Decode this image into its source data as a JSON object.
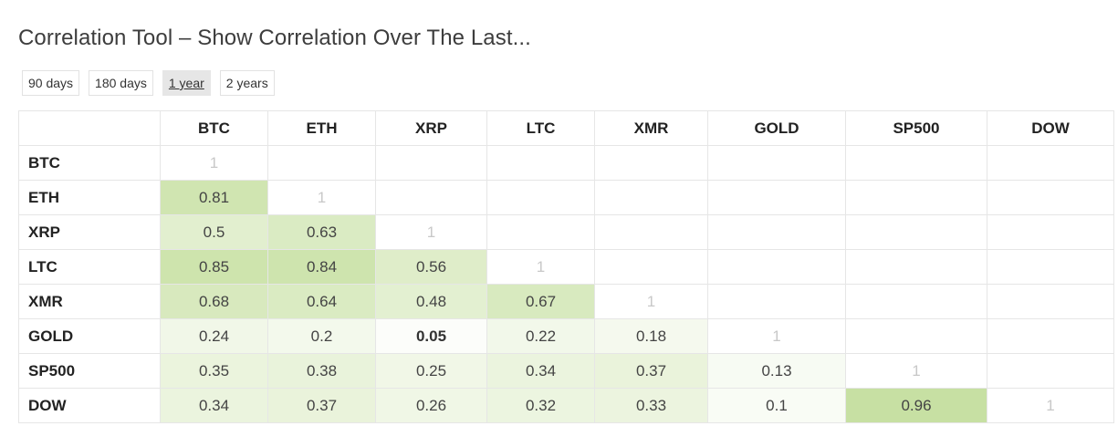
{
  "title": "Correlation Tool – Show Correlation Over The Last...",
  "ranges": [
    {
      "label": "90 days",
      "active": false
    },
    {
      "label": "180 days",
      "active": false
    },
    {
      "label": "1 year",
      "active": true
    },
    {
      "label": "2 years",
      "active": false
    }
  ],
  "matrix": {
    "columns": [
      "BTC",
      "ETH",
      "XRP",
      "LTC",
      "XMR",
      "GOLD",
      "SP500",
      "DOW"
    ],
    "rows": [
      {
        "label": "BTC",
        "values": [
          "1",
          "",
          "",
          "",
          "",
          "",
          "",
          ""
        ]
      },
      {
        "label": "ETH",
        "values": [
          "0.81",
          "1",
          "",
          "",
          "",
          "",
          "",
          ""
        ]
      },
      {
        "label": "XRP",
        "values": [
          "0.5",
          "0.63",
          "1",
          "",
          "",
          "",
          "",
          ""
        ]
      },
      {
        "label": "LTC",
        "values": [
          "0.85",
          "0.84",
          "0.56",
          "1",
          "",
          "",
          "",
          ""
        ]
      },
      {
        "label": "XMR",
        "values": [
          "0.68",
          "0.64",
          "0.48",
          "0.67",
          "1",
          "",
          "",
          ""
        ]
      },
      {
        "label": "GOLD",
        "values": [
          "0.24",
          "0.2",
          "0.05",
          "0.22",
          "0.18",
          "1",
          "",
          ""
        ]
      },
      {
        "label": "SP500",
        "values": [
          "0.35",
          "0.38",
          "0.25",
          "0.34",
          "0.37",
          "0.13",
          "1",
          ""
        ]
      },
      {
        "label": "DOW",
        "values": [
          "0.34",
          "0.37",
          "0.26",
          "0.32",
          "0.33",
          "0.1",
          "0.96",
          "1"
        ]
      }
    ],
    "bold_cells": [
      [
        5,
        2
      ]
    ],
    "colors": {
      "diagonal_text": "#c8c8c8",
      "scale_high": "#c5df9f",
      "scale_low": "#ffffff"
    }
  }
}
